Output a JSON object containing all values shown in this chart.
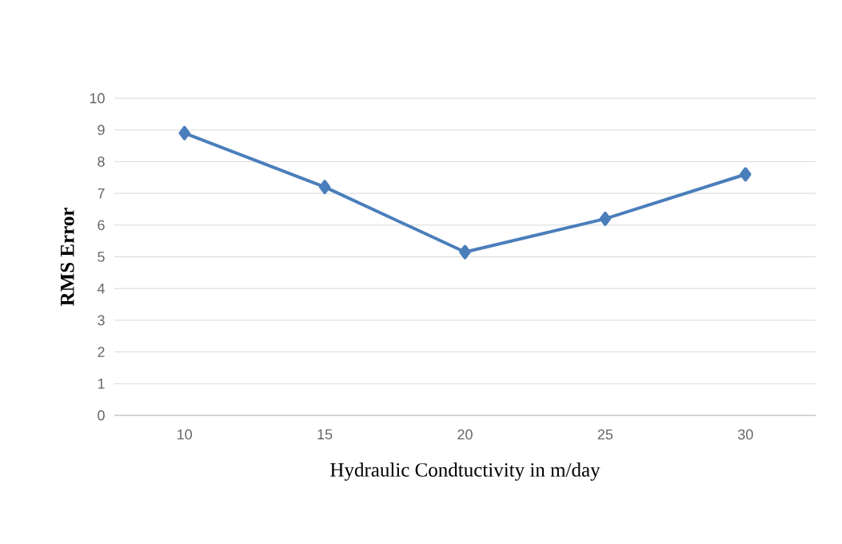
{
  "chart_data": {
    "type": "line",
    "xlabel": "Hydraulic Condtuctivity in m/day",
    "ylabel": "RMS Error",
    "categories": [
      "10",
      "15",
      "20",
      "25",
      "30"
    ],
    "series": [
      {
        "color": "#4a7ebb",
        "values": [
          8.9,
          7.2,
          5.15,
          6.2,
          7.6
        ]
      }
    ],
    "ylim": [
      0,
      10
    ],
    "yticks": [
      0,
      1,
      2,
      3,
      4,
      5,
      6,
      7,
      8,
      9,
      10
    ],
    "grid": "y",
    "marker": "diamond",
    "line_style": "solid"
  }
}
